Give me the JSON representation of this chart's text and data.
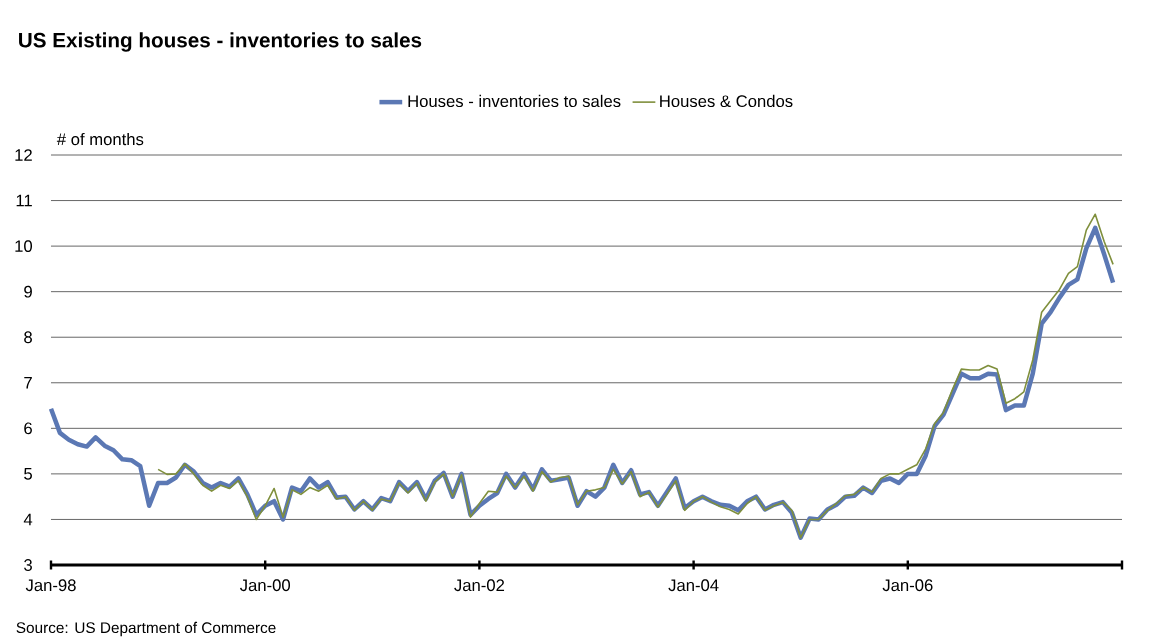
{
  "chart_data": {
    "type": "line",
    "title": "US Existing houses - inventories to sales",
    "ylabel": "# of months",
    "annotations": [
      "Source: US Department of Commerce"
    ],
    "xlim": [
      "1998-01",
      "2008-01"
    ],
    "xticks": [
      {
        "value": "1998-01",
        "label": "Jan-98"
      },
      {
        "value": "2000-01",
        "label": "Jan-00"
      },
      {
        "value": "2002-01",
        "label": "Jan-02"
      },
      {
        "value": "2004-01",
        "label": "Jan-04"
      },
      {
        "value": "2006-01",
        "label": "Jan-06"
      },
      {
        "value": "2008-01",
        "label": null
      }
    ],
    "ylim": [
      3,
      12
    ],
    "yticks": [
      3,
      4,
      5,
      6,
      7,
      8,
      9,
      10,
      11,
      12
    ],
    "grid": "y",
    "legend": "top",
    "series": [
      {
        "name": "Houses - inventories to sales",
        "color": "#5b78b4",
        "x": [
          "1998-01",
          "1998-02",
          "1998-03",
          "1998-04",
          "1998-05",
          "1998-06",
          "1998-07",
          "1998-08",
          "1998-09",
          "1998-10",
          "1998-11",
          "1998-12",
          "1999-01",
          "1999-02",
          "1999-03",
          "1999-04",
          "1999-05",
          "1999-06",
          "1999-07",
          "1999-08",
          "1999-09",
          "1999-10",
          "1999-11",
          "1999-12",
          "2000-01",
          "2000-02",
          "2000-03",
          "2000-04",
          "2000-05",
          "2000-06",
          "2000-07",
          "2000-08",
          "2000-09",
          "2000-10",
          "2000-11",
          "2000-12",
          "2001-01",
          "2001-02",
          "2001-03",
          "2001-04",
          "2001-05",
          "2001-06",
          "2001-07",
          "2001-08",
          "2001-09",
          "2001-10",
          "2001-11",
          "2001-12",
          "2002-01",
          "2002-02",
          "2002-03",
          "2002-04",
          "2002-05",
          "2002-06",
          "2002-07",
          "2002-08",
          "2002-09",
          "2002-10",
          "2002-11",
          "2002-12",
          "2003-01",
          "2003-02",
          "2003-03",
          "2003-04",
          "2003-05",
          "2003-06",
          "2003-07",
          "2003-08",
          "2003-09",
          "2003-10",
          "2003-11",
          "2003-12",
          "2004-01",
          "2004-02",
          "2004-03",
          "2004-04",
          "2004-05",
          "2004-06",
          "2004-07",
          "2004-08",
          "2004-09",
          "2004-10",
          "2004-11",
          "2004-12",
          "2005-01",
          "2005-02",
          "2005-03",
          "2005-04",
          "2005-05",
          "2005-06",
          "2005-07",
          "2005-08",
          "2005-09",
          "2005-10",
          "2005-11",
          "2005-12",
          "2006-01",
          "2006-02",
          "2006-03",
          "2006-04",
          "2006-05",
          "2006-06",
          "2006-07",
          "2006-08",
          "2006-09",
          "2006-10",
          "2006-11",
          "2006-12",
          "2007-01",
          "2007-02",
          "2007-03",
          "2007-04",
          "2007-05",
          "2007-06",
          "2007-07",
          "2007-08",
          "2007-09",
          "2007-10",
          "2007-11",
          "2007-12"
        ],
        "values": [
          6.43,
          5.9,
          5.75,
          5.65,
          5.6,
          5.8,
          5.62,
          5.52,
          5.32,
          5.3,
          5.17,
          4.3,
          4.8,
          4.8,
          4.92,
          5.2,
          5.05,
          4.8,
          4.7,
          4.8,
          4.72,
          4.9,
          4.55,
          4.1,
          4.3,
          4.4,
          4.0,
          4.7,
          4.62,
          4.9,
          4.7,
          4.82,
          4.48,
          4.5,
          4.22,
          4.4,
          4.22,
          4.47,
          4.4,
          4.82,
          4.62,
          4.82,
          4.45,
          4.85,
          5.02,
          4.5,
          5.0,
          4.1,
          4.3,
          4.45,
          4.58,
          5.0,
          4.7,
          5.0,
          4.66,
          5.1,
          4.85,
          4.88,
          4.92,
          4.3,
          4.62,
          4.5,
          4.7,
          5.2,
          4.8,
          5.08,
          4.55,
          4.6,
          4.3,
          4.6,
          4.9,
          4.25,
          4.4,
          4.5,
          4.4,
          4.32,
          4.3,
          4.2,
          4.4,
          4.5,
          4.22,
          4.32,
          4.38,
          4.15,
          3.6,
          4.02,
          4.0,
          4.22,
          4.32,
          4.5,
          4.52,
          4.7,
          4.58,
          4.85,
          4.9,
          4.8,
          5.0,
          5.0,
          5.4,
          6.05,
          6.3,
          6.75,
          7.2,
          7.1,
          7.1,
          7.2,
          7.18,
          6.4,
          6.5,
          6.5,
          7.2,
          8.3,
          8.55,
          8.87,
          9.15,
          9.27,
          9.95,
          10.4,
          9.82,
          9.2
        ]
      },
      {
        "name": "Houses & Condos",
        "color": "#7f8f3c",
        "x": [
          "1999-01",
          "1999-02",
          "1999-03",
          "1999-04",
          "1999-05",
          "1999-06",
          "1999-07",
          "1999-08",
          "1999-09",
          "1999-10",
          "1999-11",
          "1999-12",
          "2000-01",
          "2000-02",
          "2000-03",
          "2000-04",
          "2000-05",
          "2000-06",
          "2000-07",
          "2000-08",
          "2000-09",
          "2000-10",
          "2000-11",
          "2000-12",
          "2001-01",
          "2001-02",
          "2001-03",
          "2001-04",
          "2001-05",
          "2001-06",
          "2001-07",
          "2001-08",
          "2001-09",
          "2001-10",
          "2001-11",
          "2001-12",
          "2002-01",
          "2002-02",
          "2002-03",
          "2002-04",
          "2002-05",
          "2002-06",
          "2002-07",
          "2002-08",
          "2002-09",
          "2002-10",
          "2002-11",
          "2002-12",
          "2003-01",
          "2003-02",
          "2003-03",
          "2003-04",
          "2003-05",
          "2003-06",
          "2003-07",
          "2003-08",
          "2003-09",
          "2003-10",
          "2003-11",
          "2003-12",
          "2004-01",
          "2004-02",
          "2004-03",
          "2004-04",
          "2004-05",
          "2004-06",
          "2004-07",
          "2004-08",
          "2004-09",
          "2004-10",
          "2004-11",
          "2004-12",
          "2005-01",
          "2005-02",
          "2005-03",
          "2005-04",
          "2005-05",
          "2005-06",
          "2005-07",
          "2005-08",
          "2005-09",
          "2005-10",
          "2005-11",
          "2005-12",
          "2006-01",
          "2006-02",
          "2006-03",
          "2006-04",
          "2006-05",
          "2006-06",
          "2006-07",
          "2006-08",
          "2006-09",
          "2006-10",
          "2006-11",
          "2006-12",
          "2007-01",
          "2007-02",
          "2007-03",
          "2007-04",
          "2007-05",
          "2007-06",
          "2007-07",
          "2007-08",
          "2007-09",
          "2007-10",
          "2007-11",
          "2007-12"
        ],
        "values": [
          5.1,
          4.99,
          5.0,
          5.22,
          5.0,
          4.75,
          4.62,
          4.75,
          4.68,
          4.85,
          4.5,
          4.0,
          4.3,
          4.68,
          4.05,
          4.65,
          4.55,
          4.7,
          4.62,
          4.75,
          4.45,
          4.5,
          4.2,
          4.4,
          4.2,
          4.45,
          4.4,
          4.8,
          4.58,
          4.8,
          4.4,
          4.82,
          5.0,
          4.5,
          4.98,
          4.05,
          4.35,
          4.62,
          4.6,
          4.95,
          4.7,
          4.95,
          4.62,
          5.05,
          4.82,
          4.92,
          4.95,
          4.32,
          4.62,
          4.65,
          4.7,
          5.1,
          4.78,
          5.05,
          4.5,
          4.6,
          4.27,
          4.55,
          4.85,
          4.2,
          4.4,
          4.5,
          4.38,
          4.28,
          4.22,
          4.12,
          4.35,
          4.5,
          4.2,
          4.3,
          4.38,
          4.2,
          3.6,
          4.0,
          4.0,
          4.2,
          4.35,
          4.52,
          4.55,
          4.7,
          4.6,
          4.9,
          5.0,
          5.0,
          5.1,
          5.2,
          5.55,
          6.1,
          6.35,
          6.85,
          7.3,
          7.28,
          7.28,
          7.38,
          7.3,
          6.55,
          6.65,
          6.8,
          7.5,
          8.55,
          8.8,
          9.05,
          9.4,
          9.55,
          10.35,
          10.7,
          10.1,
          9.6
        ]
      }
    ]
  }
}
